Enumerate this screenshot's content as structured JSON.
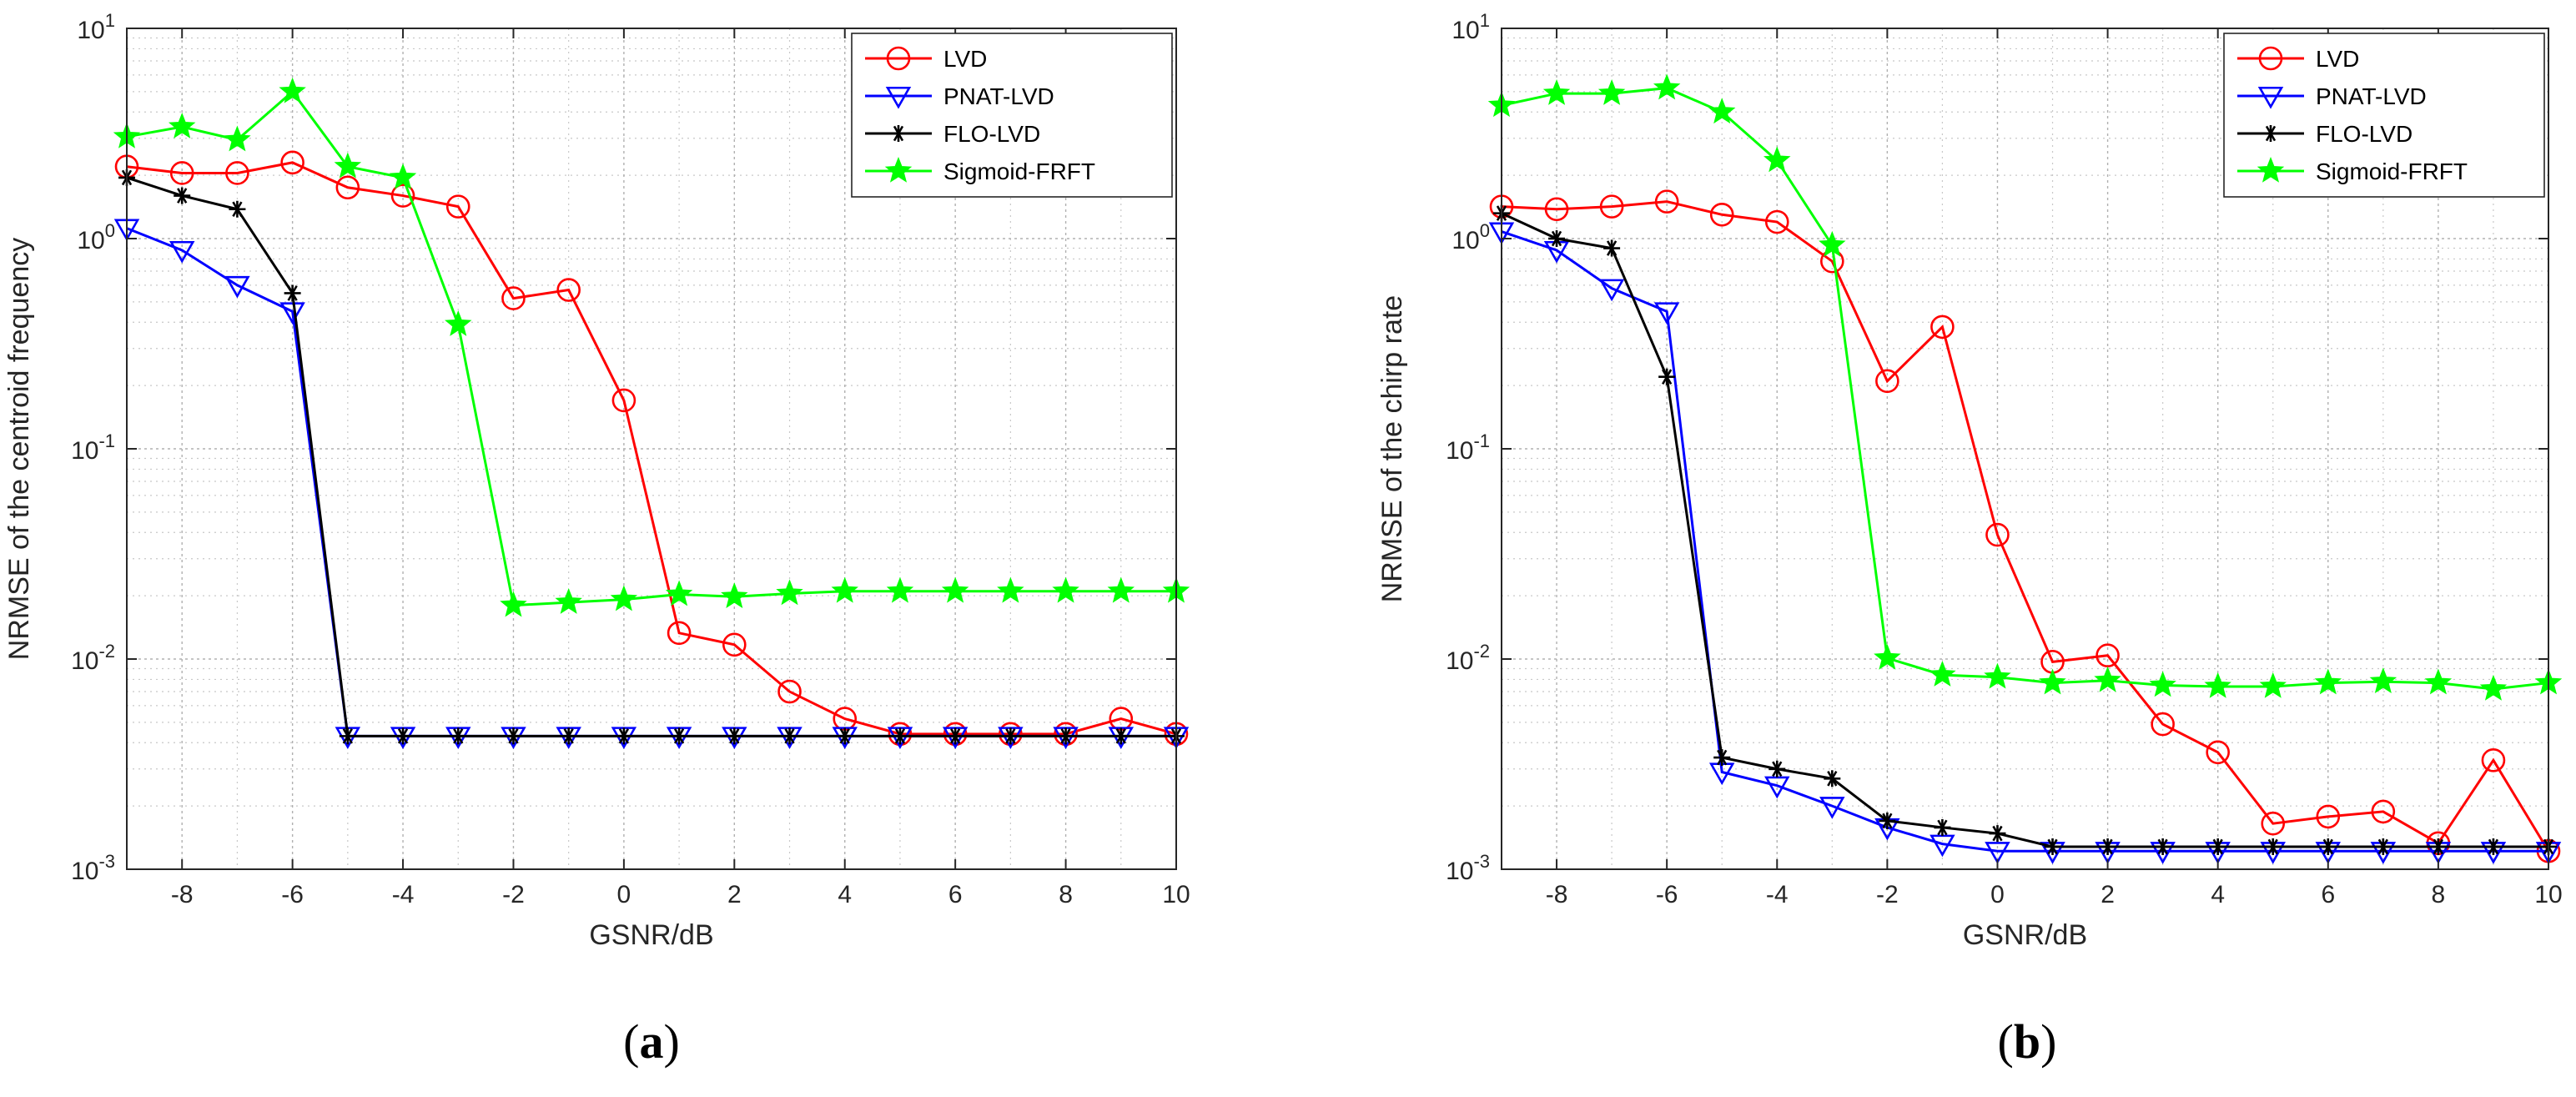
{
  "chart_data": [
    {
      "type": "line",
      "panel_label": {
        "open": "(",
        "letter": "a",
        "close": ")"
      },
      "xlabel": "GSNR/dB",
      "ylabel": "NRMSE of the centroid frequency",
      "xlim": [
        -9,
        10
      ],
      "ylim": [
        0.001,
        10
      ],
      "yscale": "log",
      "grid": true,
      "legend_position": "top-right",
      "x_ticks": [
        -8,
        -6,
        -4,
        -2,
        0,
        2,
        4,
        6,
        8,
        10
      ],
      "x_tick_labels": [
        "-8",
        "-6",
        "-4",
        "-2",
        "0",
        "2",
        "4",
        "6",
        "8",
        "10"
      ],
      "y_ticks": [
        {
          "value": 0.001,
          "base": "10",
          "exp": "-3"
        },
        {
          "value": 0.01,
          "base": "10",
          "exp": "-2"
        },
        {
          "value": 0.1,
          "base": "10",
          "exp": "-1"
        },
        {
          "value": 1,
          "base": "10",
          "exp": "0"
        },
        {
          "value": 10,
          "base": "10",
          "exp": "1"
        }
      ],
      "x": [
        -9,
        -8,
        -7,
        -6,
        -5,
        -4,
        -3,
        -2,
        -1,
        0,
        1,
        2,
        3,
        4,
        5,
        6,
        7,
        8,
        9,
        10
      ],
      "series": [
        {
          "name": "LVD",
          "color": "#ff0000",
          "marker": "circle",
          "values": [
            2.2,
            2.05,
            2.05,
            2.3,
            1.75,
            1.6,
            1.42,
            0.52,
            0.57,
            0.17,
            0.0133,
            0.0117,
            0.007,
            0.0052,
            0.0044,
            0.0044,
            0.0044,
            0.0044,
            0.0052,
            0.0044
          ]
        },
        {
          "name": "PNAT-LVD",
          "color": "#0000ff",
          "marker": "triangle-down",
          "values": [
            1.12,
            0.88,
            0.6,
            0.45,
            0.0043,
            0.0043,
            0.0043,
            0.0043,
            0.0043,
            0.0043,
            0.0043,
            0.0043,
            0.0043,
            0.0043,
            0.0043,
            0.0043,
            0.0043,
            0.0043,
            0.0043,
            0.0043
          ]
        },
        {
          "name": "FLO-LVD",
          "color": "#000000",
          "marker": "asterisk",
          "values": [
            1.95,
            1.6,
            1.38,
            0.55,
            0.0043,
            0.0043,
            0.0043,
            0.0043,
            0.0043,
            0.0043,
            0.0043,
            0.0043,
            0.0043,
            0.0043,
            0.0043,
            0.0043,
            0.0043,
            0.0043,
            0.0043,
            0.0043
          ]
        },
        {
          "name": "Sigmoid-FRFT",
          "color": "#00ff00",
          "marker": "star",
          "values": [
            3.05,
            3.4,
            2.95,
            5.0,
            2.2,
            1.95,
            0.39,
            0.018,
            0.0186,
            0.0192,
            0.0203,
            0.0198,
            0.0205,
            0.021,
            0.021,
            0.021,
            0.021,
            0.021,
            0.021,
            0.021
          ]
        }
      ]
    },
    {
      "type": "line",
      "panel_label": {
        "open": "(",
        "letter": "b",
        "close": ")"
      },
      "xlabel": "GSNR/dB",
      "ylabel": "NRMSE of the chirp rate",
      "xlim": [
        -9,
        10
      ],
      "ylim": [
        0.001,
        10
      ],
      "yscale": "log",
      "grid": true,
      "legend_position": "top-right",
      "x_ticks": [
        -8,
        -6,
        -4,
        -2,
        0,
        2,
        4,
        6,
        8,
        10
      ],
      "x_tick_labels": [
        "-8",
        "-6",
        "-4",
        "-2",
        "0",
        "2",
        "4",
        "6",
        "8",
        "10"
      ],
      "y_ticks": [
        {
          "value": 0.001,
          "base": "10",
          "exp": "-3"
        },
        {
          "value": 0.01,
          "base": "10",
          "exp": "-2"
        },
        {
          "value": 0.1,
          "base": "10",
          "exp": "-1"
        },
        {
          "value": 1,
          "base": "10",
          "exp": "0"
        },
        {
          "value": 10,
          "base": "10",
          "exp": "1"
        }
      ],
      "x": [
        -9,
        -8,
        -7,
        -6,
        -5,
        -4,
        -3,
        -2,
        -1,
        0,
        1,
        2,
        3,
        4,
        5,
        6,
        7,
        8,
        9,
        10
      ],
      "series": [
        {
          "name": "LVD",
          "color": "#ff0000",
          "marker": "circle",
          "values": [
            1.42,
            1.38,
            1.42,
            1.5,
            1.3,
            1.2,
            0.78,
            0.21,
            0.38,
            0.039,
            0.0097,
            0.0104,
            0.0049,
            0.0036,
            0.00165,
            0.00178,
            0.00188,
            0.00133,
            0.0033,
            0.00122
          ]
        },
        {
          "name": "PNAT-LVD",
          "color": "#0000ff",
          "marker": "triangle-down",
          "values": [
            1.08,
            0.88,
            0.58,
            0.45,
            0.0029,
            0.0025,
            0.002,
            0.00158,
            0.00132,
            0.00122,
            0.00122,
            0.00122,
            0.00122,
            0.00122,
            0.00122,
            0.00122,
            0.00122,
            0.00122,
            0.00122,
            0.00122
          ]
        },
        {
          "name": "FLO-LVD",
          "color": "#000000",
          "marker": "asterisk",
          "values": [
            1.32,
            1.0,
            0.9,
            0.22,
            0.0034,
            0.003,
            0.0027,
            0.0017,
            0.00158,
            0.00148,
            0.00128,
            0.00128,
            0.00128,
            0.00128,
            0.00128,
            0.00128,
            0.00128,
            0.00128,
            0.00128,
            0.00128
          ]
        },
        {
          "name": "Sigmoid-FRFT",
          "color": "#00ff00",
          "marker": "star",
          "values": [
            4.3,
            4.9,
            4.9,
            5.2,
            4.0,
            2.35,
            0.93,
            0.0101,
            0.0084,
            0.0082,
            0.0077,
            0.0079,
            0.0075,
            0.0074,
            0.0074,
            0.0077,
            0.0078,
            0.0077,
            0.0072,
            0.0077
          ]
        }
      ]
    }
  ]
}
